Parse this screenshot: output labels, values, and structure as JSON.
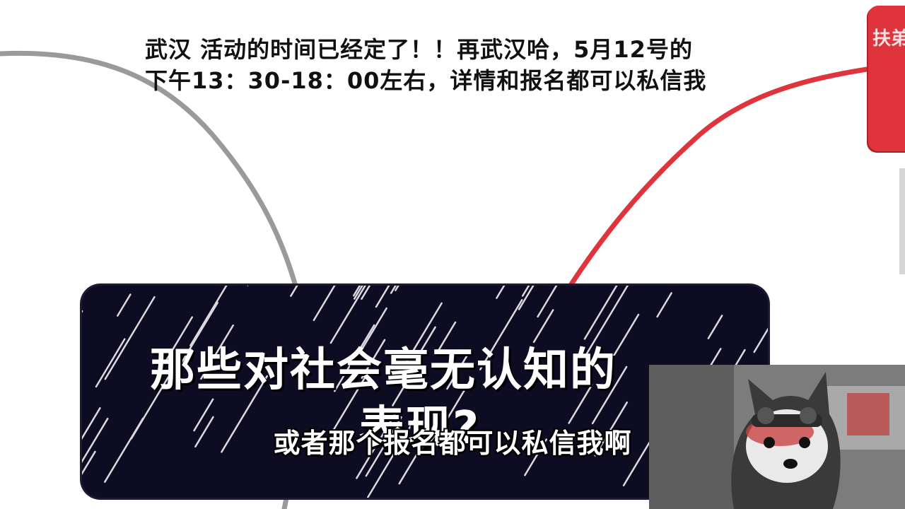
{
  "announcement": {
    "line1": "武汉 活动的时间已经定了！！再武汉哈，5月12号的",
    "line2": "下午13：30-18：00左右，详情和报名都可以私信我"
  },
  "red_tab": {
    "text": "扶弟弟"
  },
  "title_card": {
    "line1": "那些对社会毫无认知的",
    "line2": "表现?"
  },
  "subtitle": "或者那个报名都可以私信我啊",
  "colors": {
    "accent_red": "#e0343c",
    "curve_red": "#e0343c",
    "curve_gray": "#9a9a9a",
    "card_bg": "#0d0c22"
  }
}
